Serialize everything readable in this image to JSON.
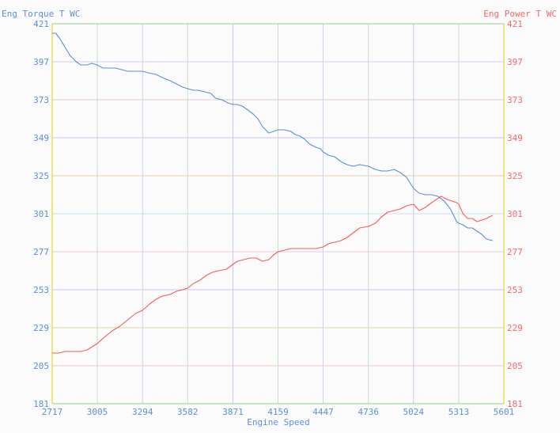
{
  "colors": {
    "background": "#fbfbfb",
    "left_axis": "#5b8fd6",
    "right_axis": "#f06a6a",
    "torque_line": "#5b8fd6",
    "power_line": "#f25c5c"
  },
  "chart_data": {
    "type": "line",
    "xlabel": "Engine Speed",
    "ylabel_left": "Eng Torque T WC",
    "ylabel_right": "Eng Power T WC",
    "xlim": [
      2717,
      5601
    ],
    "ylim": [
      181,
      421
    ],
    "x_ticks": [
      2717,
      3005,
      3294,
      3582,
      3871,
      4159,
      4447,
      4736,
      5024,
      5313,
      5601
    ],
    "y_ticks": [
      181,
      205,
      229,
      253,
      277,
      301,
      325,
      349,
      373,
      397,
      421
    ],
    "grid": true,
    "series": [
      {
        "name": "Eng Torque T WC",
        "axis": "left",
        "x": [
          2717,
          2740,
          2770,
          2800,
          2830,
          2870,
          2900,
          2940,
          2970,
          3005,
          3040,
          3080,
          3120,
          3160,
          3200,
          3240,
          3294,
          3330,
          3380,
          3420,
          3470,
          3510,
          3550,
          3582,
          3620,
          3650,
          3690,
          3730,
          3760,
          3800,
          3840,
          3871,
          3900,
          3930,
          3960,
          4000,
          4030,
          4060,
          4100,
          4130,
          4159,
          4200,
          4240,
          4270,
          4300,
          4330,
          4360,
          4400,
          4430,
          4447,
          4480,
          4520,
          4560,
          4600,
          4640,
          4680,
          4736,
          4780,
          4820,
          4860,
          4900,
          4940,
          4980,
          5024,
          5060,
          5100,
          5140,
          5180,
          5220,
          5260,
          5300,
          5313,
          5340,
          5370,
          5400,
          5430,
          5460,
          5490,
          5530
        ],
        "values": [
          415,
          415,
          411,
          406,
          401,
          397,
          395,
          395,
          396,
          395,
          393,
          393,
          393,
          392,
          391,
          391,
          391,
          390,
          389,
          387,
          385,
          383,
          381,
          380,
          379,
          379,
          378,
          377,
          374,
          373,
          371,
          370,
          370,
          369,
          367,
          364,
          361,
          356,
          352,
          353,
          354,
          354,
          353,
          351,
          350,
          348,
          345,
          343,
          342,
          340,
          338,
          337,
          334,
          332,
          331,
          332,
          331,
          329,
          328,
          328,
          329,
          327,
          324,
          317,
          314,
          313,
          313,
          312,
          309,
          304,
          296,
          295,
          294,
          292,
          292,
          290,
          288,
          285,
          284
        ]
      },
      {
        "name": "Eng Power T WC",
        "axis": "right",
        "x": [
          2717,
          2760,
          2800,
          2850,
          2900,
          2940,
          3005,
          3050,
          3100,
          3150,
          3200,
          3250,
          3294,
          3340,
          3380,
          3420,
          3470,
          3510,
          3550,
          3582,
          3620,
          3660,
          3700,
          3740,
          3780,
          3830,
          3871,
          3900,
          3940,
          3980,
          4020,
          4060,
          4100,
          4130,
          4159,
          4200,
          4240,
          4280,
          4320,
          4360,
          4400,
          4447,
          4480,
          4520,
          4560,
          4600,
          4640,
          4680,
          4736,
          4780,
          4820,
          4860,
          4900,
          4940,
          4980,
          5024,
          5060,
          5100,
          5140,
          5170,
          5200,
          5240,
          5270,
          5300,
          5313,
          5340,
          5370,
          5400,
          5430,
          5460,
          5490,
          5530
        ],
        "values": [
          213,
          213,
          214,
          214,
          214,
          215,
          219,
          223,
          227,
          230,
          234,
          238,
          240,
          244,
          247,
          249,
          250,
          252,
          253,
          254,
          257,
          259,
          262,
          264,
          265,
          266,
          269,
          271,
          272,
          273,
          273,
          271,
          272,
          275,
          277,
          278,
          279,
          279,
          279,
          279,
          279,
          280,
          282,
          283,
          284,
          286,
          289,
          292,
          293,
          295,
          299,
          302,
          303,
          304,
          306,
          307,
          303,
          305,
          308,
          310,
          312,
          310,
          309,
          308,
          307,
          301,
          298,
          298,
          296,
          297,
          298,
          300
        ]
      }
    ]
  }
}
